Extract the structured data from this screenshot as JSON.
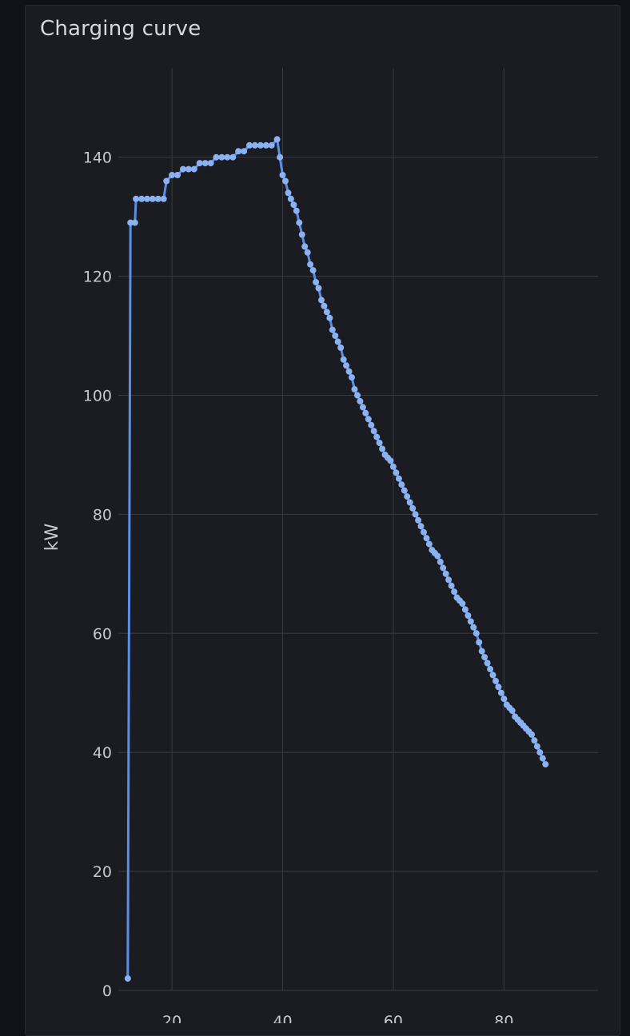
{
  "panel": {
    "title": "Charging curve"
  },
  "colors": {
    "background": "#111217",
    "panel": "#1b1c21",
    "grid": "#3a3b42",
    "series": "#5b8ee6",
    "points": "#8ab2f2",
    "text": "#c7c8cf"
  },
  "chart_data": {
    "type": "line",
    "title": "Charging curve",
    "xlabel": "",
    "ylabel": "kW",
    "xlim": [
      10.3,
      97
    ],
    "ylim": [
      0,
      155
    ],
    "xticks": [
      20,
      40,
      60,
      80
    ],
    "yticks": [
      0,
      20,
      40,
      60,
      80,
      100,
      120,
      140
    ],
    "grid": true,
    "series": [
      {
        "values_xy": [
          [
            12,
            2
          ],
          [
            12.5,
            129
          ],
          [
            13.3,
            129
          ],
          [
            13.5,
            133
          ],
          [
            14.5,
            133
          ],
          [
            15.5,
            133
          ],
          [
            16.5,
            133
          ],
          [
            17.5,
            133
          ],
          [
            18.5,
            133
          ],
          [
            19,
            136
          ],
          [
            20,
            137
          ],
          [
            21,
            137
          ],
          [
            22,
            138
          ],
          [
            23,
            138
          ],
          [
            24,
            138
          ],
          [
            25,
            139
          ],
          [
            26,
            139
          ],
          [
            27,
            139
          ],
          [
            28,
            140
          ],
          [
            29,
            140
          ],
          [
            30,
            140
          ],
          [
            31,
            140
          ],
          [
            32,
            141
          ],
          [
            33,
            141
          ],
          [
            34,
            142
          ],
          [
            35,
            142
          ],
          [
            36,
            142
          ],
          [
            37,
            142
          ],
          [
            38,
            142
          ],
          [
            39,
            143
          ],
          [
            39.5,
            140
          ],
          [
            40,
            137
          ],
          [
            40.5,
            136
          ],
          [
            41,
            134
          ],
          [
            41.5,
            133
          ],
          [
            42,
            132
          ],
          [
            42.5,
            131
          ],
          [
            43,
            129
          ],
          [
            43.5,
            127
          ],
          [
            44,
            125
          ],
          [
            44.5,
            124
          ],
          [
            45,
            122
          ],
          [
            45.5,
            121
          ],
          [
            46,
            119
          ],
          [
            46.5,
            118
          ],
          [
            47,
            116
          ],
          [
            47.5,
            115
          ],
          [
            48,
            114
          ],
          [
            48.5,
            113
          ],
          [
            49,
            111
          ],
          [
            49.5,
            110
          ],
          [
            50,
            109
          ],
          [
            50.5,
            108
          ],
          [
            51,
            106
          ],
          [
            51.5,
            105
          ],
          [
            52,
            104
          ],
          [
            52.5,
            103
          ],
          [
            53,
            101
          ],
          [
            53.5,
            100
          ],
          [
            54,
            99
          ],
          [
            54.5,
            98
          ],
          [
            55,
            97
          ],
          [
            55.5,
            96
          ],
          [
            56,
            95
          ],
          [
            56.5,
            94
          ],
          [
            57,
            93
          ],
          [
            57.5,
            92
          ],
          [
            58,
            91
          ],
          [
            58.5,
            90
          ],
          [
            59,
            89.5
          ],
          [
            59.5,
            89
          ],
          [
            60,
            88
          ],
          [
            60.5,
            87
          ],
          [
            61,
            86
          ],
          [
            61.5,
            85
          ],
          [
            62,
            84
          ],
          [
            62.5,
            83
          ],
          [
            63,
            82
          ],
          [
            63.5,
            81
          ],
          [
            64,
            80
          ],
          [
            64.5,
            79
          ],
          [
            65,
            78
          ],
          [
            65.5,
            77
          ],
          [
            66,
            76
          ],
          [
            66.5,
            75
          ],
          [
            67,
            74
          ],
          [
            67.5,
            73.5
          ],
          [
            68,
            73
          ],
          [
            68.5,
            72
          ],
          [
            69,
            71
          ],
          [
            69.5,
            70
          ],
          [
            70,
            69
          ],
          [
            70.5,
            68
          ],
          [
            71,
            67
          ],
          [
            71.5,
            66
          ],
          [
            72,
            65.5
          ],
          [
            72.5,
            65
          ],
          [
            73,
            64
          ],
          [
            73.5,
            63
          ],
          [
            74,
            62
          ],
          [
            74.5,
            61
          ],
          [
            75,
            60
          ],
          [
            75.5,
            58.5
          ],
          [
            76,
            57
          ],
          [
            76.5,
            56
          ],
          [
            77,
            55
          ],
          [
            77.5,
            54
          ],
          [
            78,
            53
          ],
          [
            78.5,
            52
          ],
          [
            79,
            51
          ],
          [
            79.5,
            50
          ],
          [
            80,
            49
          ],
          [
            80.5,
            48
          ],
          [
            81,
            47.5
          ],
          [
            81.5,
            47
          ],
          [
            82,
            46
          ],
          [
            82.5,
            45.5
          ],
          [
            83,
            45
          ],
          [
            83.5,
            44.5
          ],
          [
            84,
            44
          ],
          [
            84.5,
            43.5
          ],
          [
            85,
            43
          ],
          [
            85.5,
            42
          ],
          [
            86,
            41
          ],
          [
            86.5,
            40
          ],
          [
            87,
            39
          ],
          [
            87.5,
            38
          ]
        ]
      }
    ]
  }
}
